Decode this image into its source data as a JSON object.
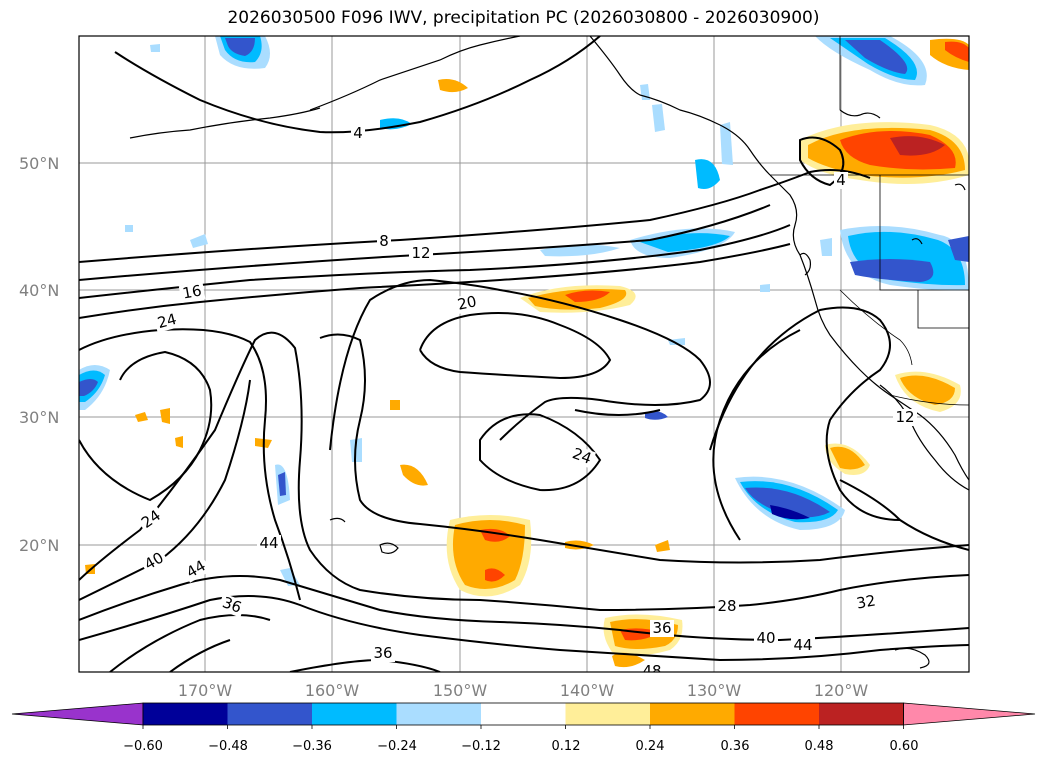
{
  "title": "2026030500 F096 IWV, precipitation PC (2026030800 - 2026030900)",
  "map": {
    "lon_labels": [
      "170°W",
      "160°W",
      "150°W",
      "140°W",
      "130°W",
      "120°W"
    ],
    "lat_labels": [
      "50°N",
      "40°N",
      "30°N",
      "20°N"
    ],
    "contour_labels": [
      "4",
      "8",
      "12",
      "16",
      "20",
      "24",
      "24",
      "24",
      "40",
      "44",
      "44",
      "36",
      "36",
      "28",
      "32",
      "36",
      "40",
      "44",
      "48",
      "4",
      "12"
    ]
  },
  "colorbar": {
    "ticks": [
      "−0.60",
      "−0.48",
      "−0.36",
      "−0.24",
      "−0.12",
      "0.12",
      "0.24",
      "0.36",
      "0.48",
      "0.60"
    ],
    "colors": [
      "#9933cc",
      "#000099",
      "#3355cc",
      "#00bbff",
      "#aaddff",
      "#ffffff",
      "#ffee99",
      "#ffaa00",
      "#ff4400",
      "#bb2222",
      "#ff88aa"
    ]
  }
}
